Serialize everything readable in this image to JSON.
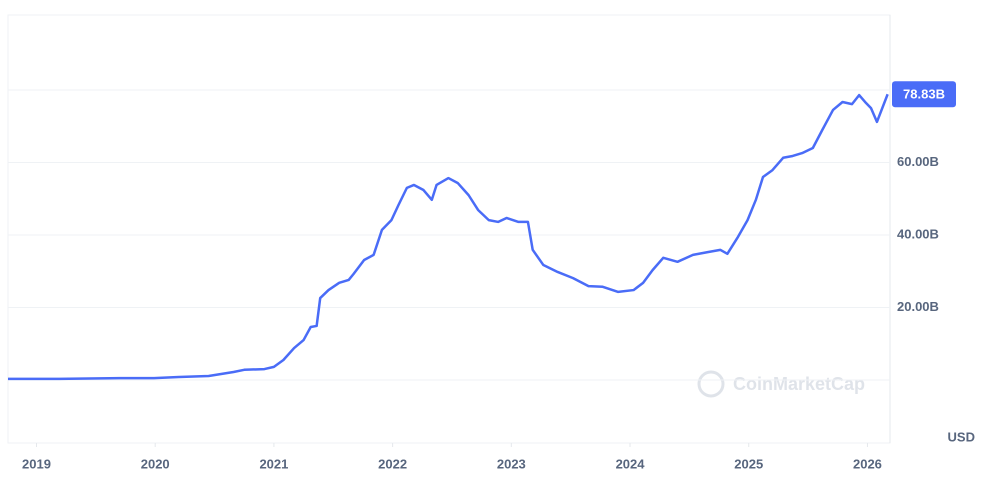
{
  "chart_data": {
    "type": "line",
    "x": [
      2018.76,
      2019.19,
      2019.7,
      2019.99,
      2020.2,
      2020.45,
      2020.66,
      2020.75,
      2020.92,
      2021.0,
      2021.08,
      2021.17,
      2021.25,
      2021.31,
      2021.36,
      2021.39,
      2021.46,
      2021.55,
      2021.63,
      2021.67,
      2021.76,
      2021.84,
      2021.91,
      2021.99,
      2022.05,
      2022.12,
      2022.18,
      2022.26,
      2022.33,
      2022.37,
      2022.47,
      2022.55,
      2022.64,
      2022.72,
      2022.81,
      2022.89,
      2022.96,
      2023.06,
      2023.14,
      2023.18,
      2023.27,
      2023.39,
      2023.52,
      2023.65,
      2023.77,
      2023.9,
      2024.03,
      2024.11,
      2024.19,
      2024.28,
      2024.4,
      2024.53,
      2024.66,
      2024.76,
      2024.82,
      2024.91,
      2024.99,
      2025.06,
      2025.12,
      2025.2,
      2025.29,
      2025.37,
      2025.45,
      2025.54,
      2025.62,
      2025.71,
      2025.79,
      2025.87,
      2025.93,
      2025.98,
      2026.03,
      2026.08,
      2026.17
    ],
    "series": [
      {
        "color": "#4a6cf7",
        "values": [
          0.3,
          0.3,
          0.5,
          0.5,
          0.8,
          1.1,
          2.2,
          2.8,
          3.0,
          3.6,
          5.5,
          8.8,
          11,
          14.6,
          14.9,
          22.6,
          24.8,
          26.8,
          27.6,
          29.2,
          33.1,
          34.5,
          41.4,
          44.1,
          48.3,
          53,
          53.8,
          52.4,
          49.7,
          53.8,
          55.7,
          54.3,
          51,
          46.9,
          44.1,
          43.6,
          44.7,
          43.6,
          43.6,
          35.9,
          31.7,
          29.8,
          28.1,
          25.9,
          25.7,
          24.3,
          24.8,
          26.8,
          30.3,
          33.7,
          32.6,
          34.5,
          35.3,
          35.9,
          34.8,
          39.5,
          44.1,
          49.7,
          56,
          57.9,
          61.3,
          61.8,
          62.6,
          64,
          69,
          74.5,
          76.7,
          76.1,
          78.6,
          76.7,
          75,
          71.2,
          78.83
        ],
        "value_labels": [
          null,
          null,
          null,
          null,
          null,
          null,
          null,
          null,
          null,
          null,
          null,
          null,
          null,
          null,
          null,
          null,
          null,
          null,
          null,
          null,
          null,
          null,
          null,
          null,
          null,
          null,
          null,
          null,
          null,
          null,
          null,
          null,
          null,
          null,
          null,
          null,
          null,
          null,
          null,
          null,
          null,
          null,
          null,
          null,
          null,
          null,
          null,
          null,
          null,
          null,
          null,
          null,
          null,
          null,
          null,
          null,
          null,
          null,
          null,
          null,
          null,
          null,
          null,
          null,
          null,
          null,
          null,
          null,
          null,
          null,
          null,
          null,
          "78.83B"
        ]
      }
    ],
    "xlim": [
      2018.76,
      2026.19
    ],
    "xticks": [
      2019,
      2020,
      2021,
      2022,
      2023,
      2024,
      2025,
      2026
    ],
    "ylim": [
      -17.4,
      100.7
    ],
    "yticks": [
      {
        "value": 0,
        "label": null
      },
      {
        "value": 20,
        "label": "20.00B"
      },
      {
        "value": 40,
        "label": "40.00B"
      },
      {
        "value": 60,
        "label": "60.00B"
      },
      {
        "value": 80,
        "label": null
      }
    ],
    "grid": true,
    "currency": "USD",
    "watermark": "CoinMarketCap"
  }
}
